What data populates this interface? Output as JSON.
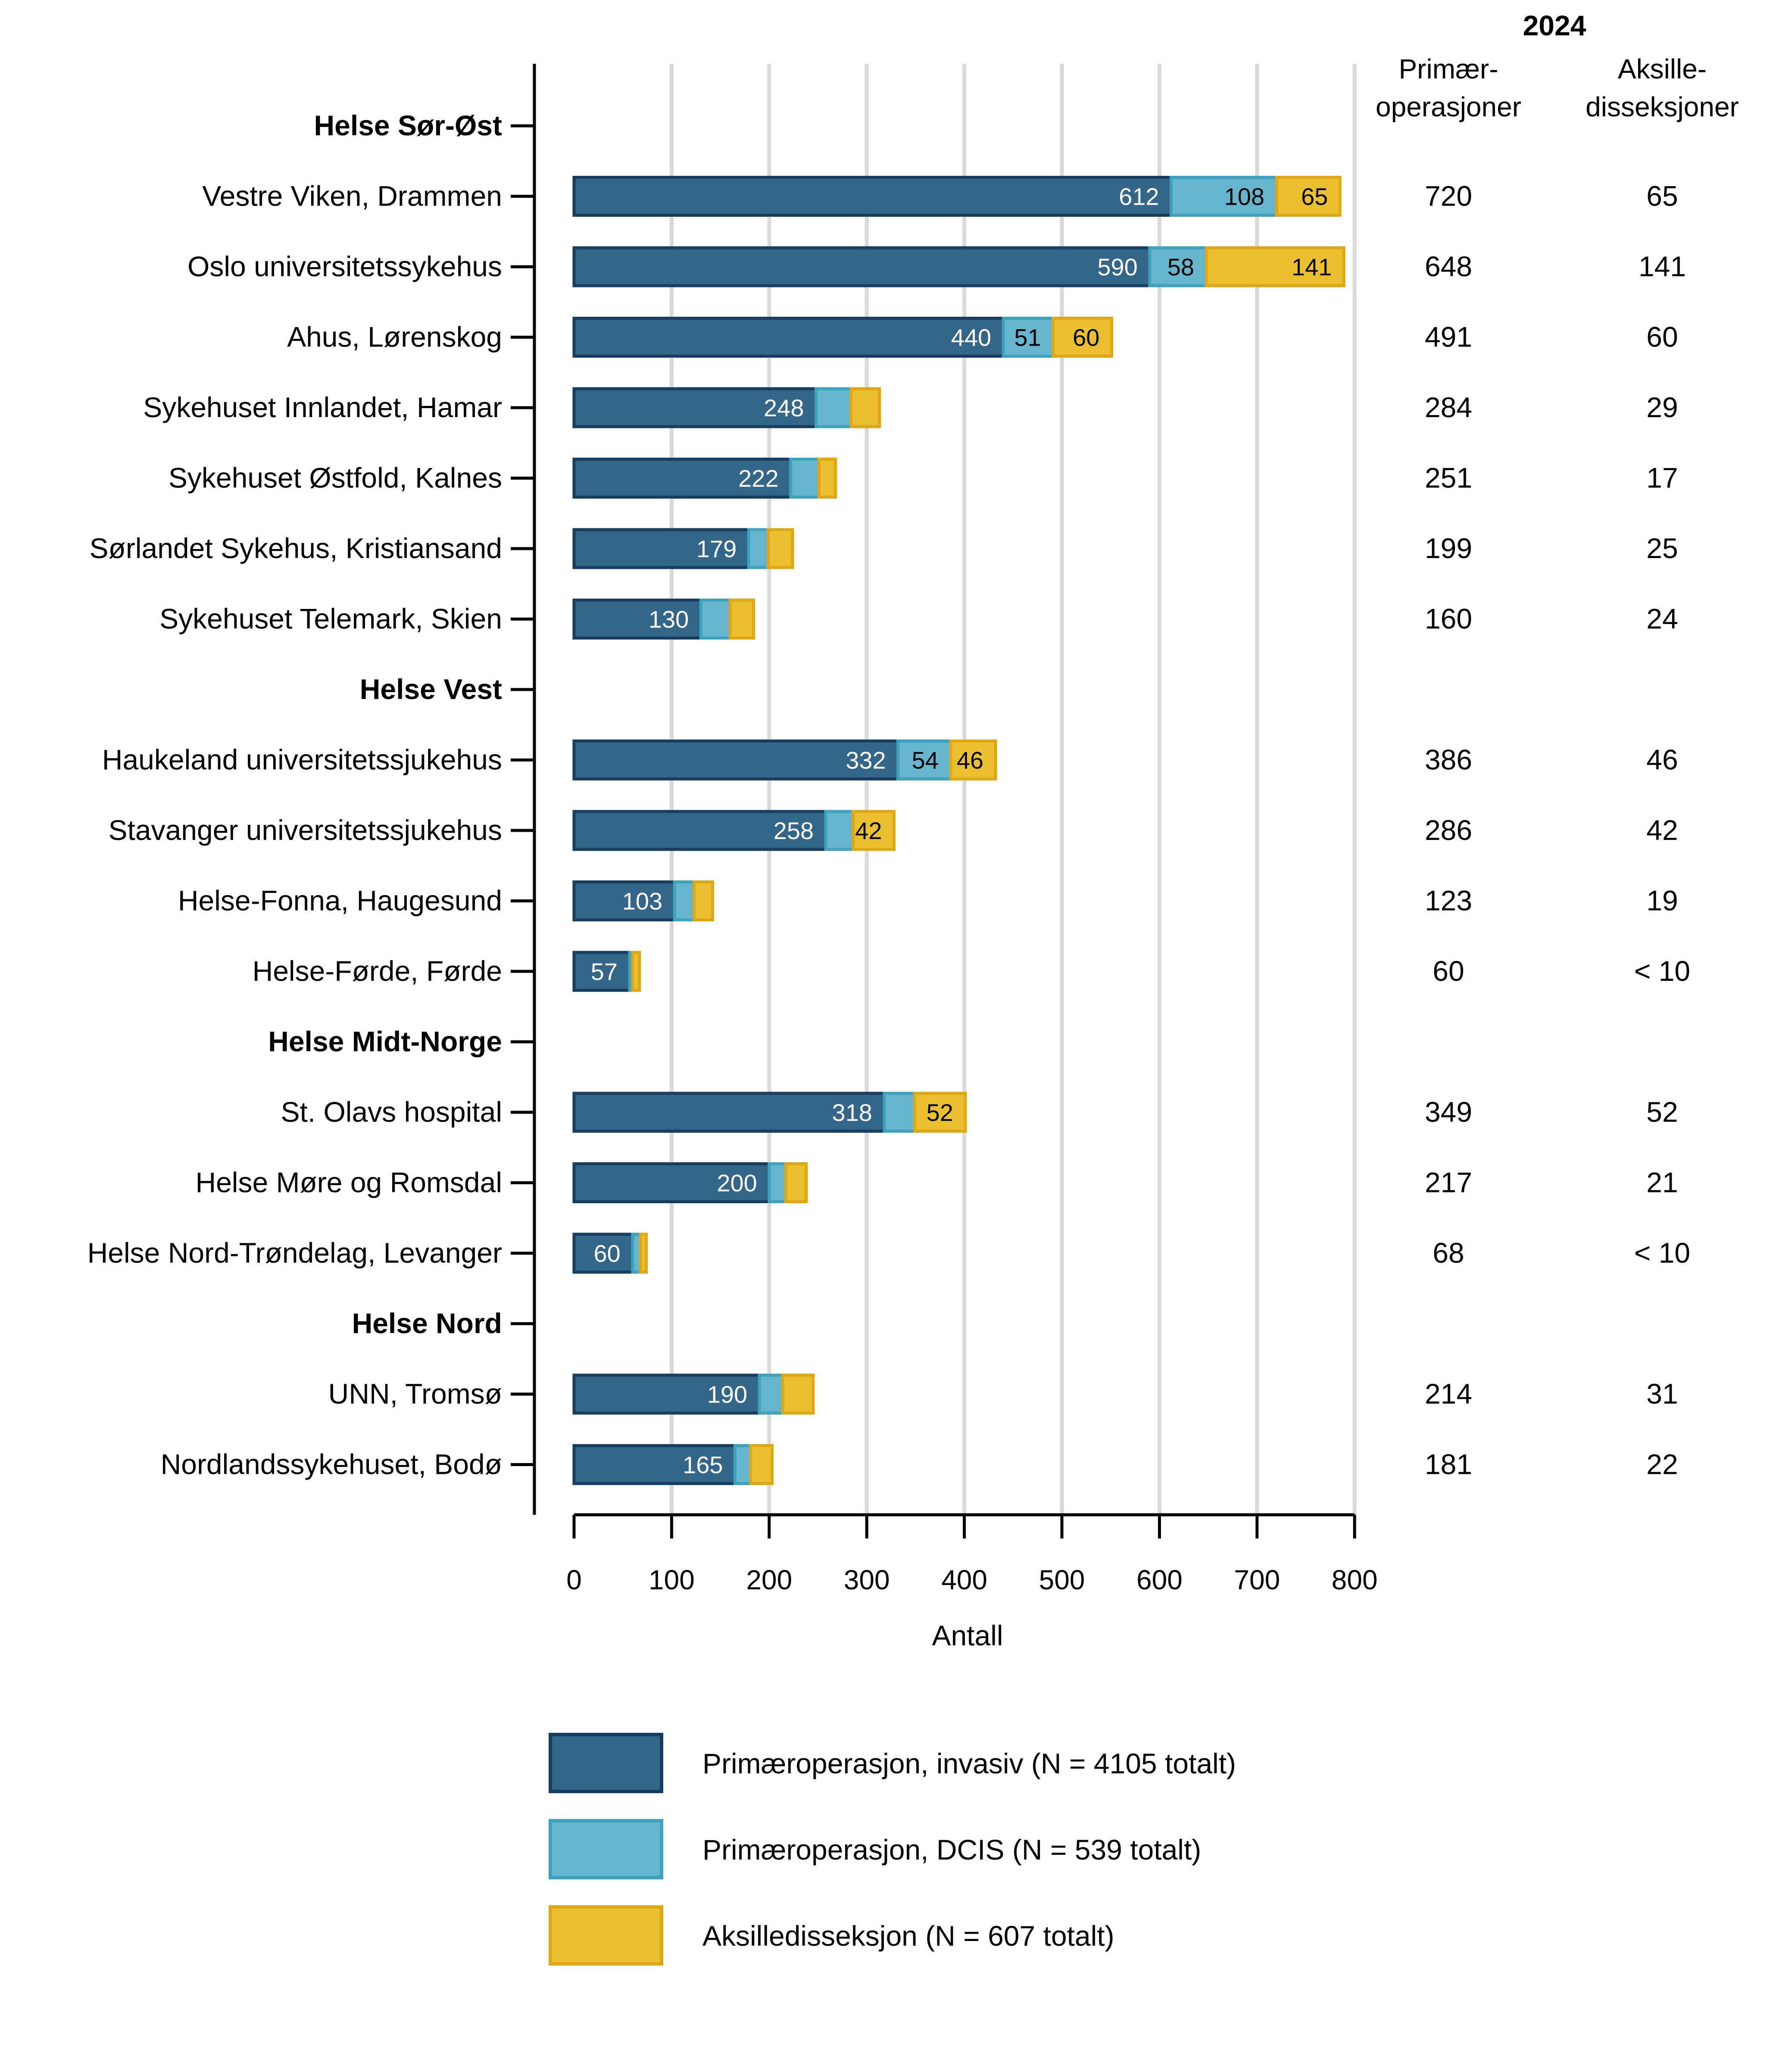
{
  "chart_data": {
    "type": "bar",
    "orientation": "horizontal",
    "stacked": true,
    "xlabel": "Antall",
    "xlim": [
      0,
      800
    ],
    "xticks": [
      0,
      100,
      200,
      300,
      400,
      500,
      600,
      700,
      800
    ],
    "grid": "vertical",
    "legend_position": "bottom",
    "table_header": {
      "year": "2024",
      "col1_line1": "Primær-",
      "col1_line2": "operasjoner",
      "col2_line1": "Aksille-",
      "col2_line2": "disseksjoner"
    },
    "series": [
      {
        "name": "Primæroperasjon, invasiv (N = 4105 totalt)",
        "color": "#336688",
        "edge": "#153E60"
      },
      {
        "name": "Primæroperasjon, DCIS (N = 539 totalt)",
        "color": "#67B5CC",
        "edge": "#3CA2BE"
      },
      {
        "name": "Aksilledisseksjon (N = 607 totalt)",
        "color": "#EBC030",
        "edge": "#DFA615"
      }
    ],
    "rows": [
      {
        "group": true,
        "label": "Helse Sør-Øst"
      },
      {
        "label": "Vestre Viken, Drammen",
        "invasive": 612,
        "dcis": 108,
        "axillary": 65,
        "labels": [
          "612",
          "108",
          "65"
        ],
        "primary_total": "720",
        "axillary_total": "65"
      },
      {
        "label": "Oslo universitetssykehus",
        "invasive": 590,
        "dcis": 58,
        "axillary": 141,
        "labels": [
          "590",
          "58",
          "141"
        ],
        "primary_total": "648",
        "axillary_total": "141"
      },
      {
        "label": "Ahus, Lørenskog",
        "invasive": 440,
        "dcis": 51,
        "axillary": 60,
        "labels": [
          "440",
          "51",
          "60"
        ],
        "primary_total": "491",
        "axillary_total": "60"
      },
      {
        "label": "Sykehuset Innlandet, Hamar",
        "invasive": 248,
        "dcis": 36,
        "axillary": 29,
        "labels": [
          "248",
          "",
          ""
        ],
        "primary_total": "284",
        "axillary_total": "29"
      },
      {
        "label": "Sykehuset Østfold, Kalnes",
        "invasive": 222,
        "dcis": 29,
        "axillary": 17,
        "labels": [
          "222",
          "",
          ""
        ],
        "primary_total": "251",
        "axillary_total": "17"
      },
      {
        "label": "Sørlandet Sykehus, Kristiansand",
        "invasive": 179,
        "dcis": 20,
        "axillary": 25,
        "labels": [
          "179",
          "",
          ""
        ],
        "primary_total": "199",
        "axillary_total": "25"
      },
      {
        "label": "Sykehuset Telemark, Skien",
        "invasive": 130,
        "dcis": 30,
        "axillary": 24,
        "labels": [
          "130",
          "",
          ""
        ],
        "primary_total": "160",
        "axillary_total": "24"
      },
      {
        "group": true,
        "label": "Helse Vest"
      },
      {
        "label": "Haukeland universitetssjukehus",
        "invasive": 332,
        "dcis": 54,
        "axillary": 46,
        "labels": [
          "332",
          "54",
          "46"
        ],
        "primary_total": "386",
        "axillary_total": "46"
      },
      {
        "label": "Stavanger universitetssjukehus",
        "invasive": 258,
        "dcis": 28,
        "axillary": 42,
        "labels": [
          "258",
          "",
          "42"
        ],
        "primary_total": "286",
        "axillary_total": "42"
      },
      {
        "label": "Helse-Fonna, Haugesund",
        "invasive": 103,
        "dcis": 20,
        "axillary": 19,
        "labels": [
          "103",
          "",
          ""
        ],
        "primary_total": "123",
        "axillary_total": "19"
      },
      {
        "label": "Helse-Førde, Førde",
        "invasive": 57,
        "dcis": 3,
        "axillary": 7,
        "labels": [
          "57",
          "",
          ""
        ],
        "primary_total": "60",
        "axillary_total": "< 10"
      },
      {
        "group": true,
        "label": "Helse Midt-Norge"
      },
      {
        "label": "St. Olavs hospital",
        "invasive": 318,
        "dcis": 31,
        "axillary": 52,
        "labels": [
          "318",
          "",
          "52"
        ],
        "primary_total": "349",
        "axillary_total": "52"
      },
      {
        "label": "Helse Møre og Romsdal",
        "invasive": 200,
        "dcis": 17,
        "axillary": 21,
        "labels": [
          "200",
          "",
          ""
        ],
        "primary_total": "217",
        "axillary_total": "21"
      },
      {
        "label": "Helse Nord-Trøndelag, Levanger",
        "invasive": 60,
        "dcis": 8,
        "axillary": 6,
        "labels": [
          "60",
          "",
          ""
        ],
        "primary_total": "68",
        "axillary_total": "< 10"
      },
      {
        "group": true,
        "label": "Helse Nord"
      },
      {
        "label": "UNN, Tromsø",
        "invasive": 190,
        "dcis": 24,
        "axillary": 31,
        "labels": [
          "190",
          "",
          ""
        ],
        "primary_total": "214",
        "axillary_total": "31"
      },
      {
        "label": "Nordlandssykehuset, Bodø",
        "invasive": 165,
        "dcis": 16,
        "axillary": 22,
        "labels": [
          "165",
          "",
          ""
        ],
        "primary_total": "181",
        "axillary_total": "22"
      }
    ]
  }
}
